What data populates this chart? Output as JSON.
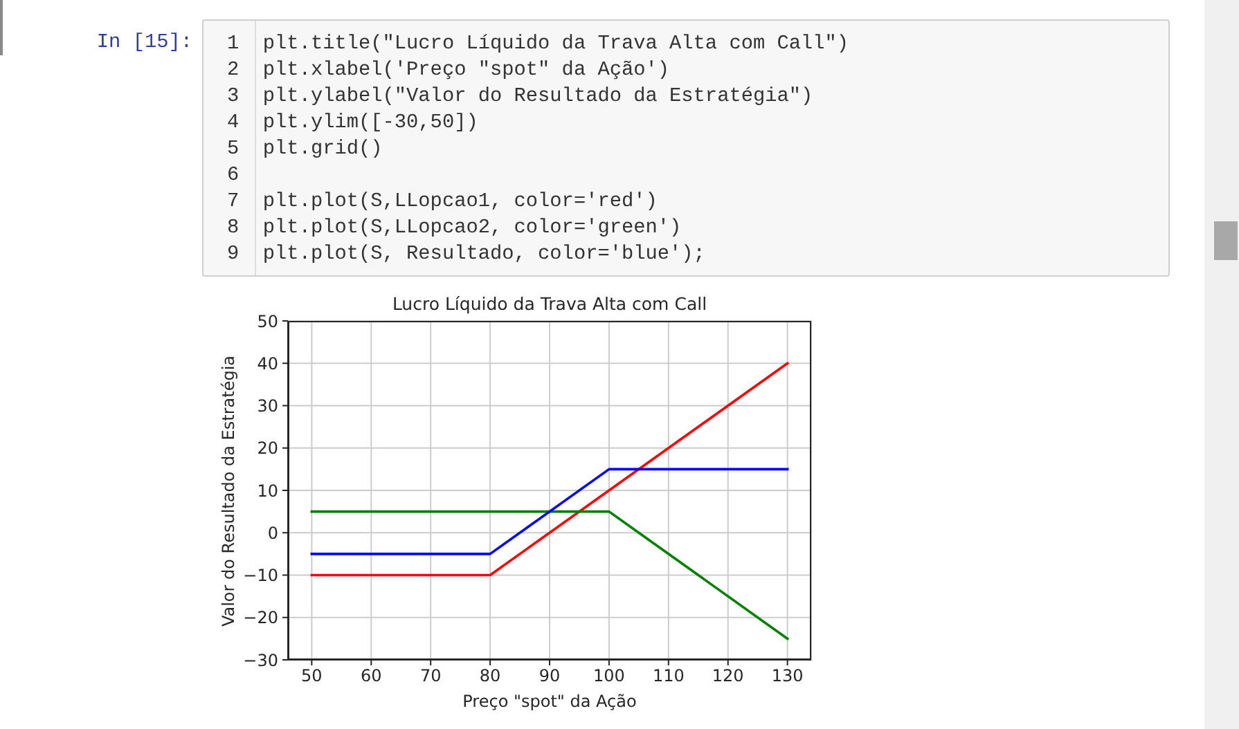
{
  "chart_data": {
    "type": "line",
    "title": "Lucro Líquido da Trava Alta com Call",
    "xlabel": "Preço \"spot\" da Ação",
    "ylabel": "Valor do Resultado da Estratégia",
    "x": [
      50,
      80,
      100,
      130
    ],
    "series": [
      {
        "color": "#ff0000",
        "values": [
          -10,
          -10,
          10,
          40
        ]
      },
      {
        "color": "#008000",
        "values": [
          5,
          5,
          5,
          -25
        ]
      },
      {
        "color": "#0000ff",
        "values": [
          -5,
          -5,
          15,
          15
        ]
      }
    ],
    "xlim": [
      46,
      134
    ],
    "xticks": [
      50,
      60,
      70,
      80,
      90,
      100,
      110,
      120,
      130
    ],
    "ylim": [
      -30,
      50
    ],
    "yticks": [
      {
        "value": -30,
        "label": "−30"
      },
      {
        "value": -20,
        "label": "−20"
      },
      {
        "value": -10,
        "label": "−10"
      },
      0,
      10,
      20,
      30,
      40,
      50
    ],
    "grid": true,
    "marker": "none",
    "line_style": "solid",
    "annotations": [
      "In [15]:",
      "1  plt.title(\"Lucro Líquido da Trava Alta com Call\")",
      "2  plt.xlabel('Preço \"spot\" da Ação')",
      "3  plt.ylabel(\"Valor do Resultado da Estratégia\")",
      "4  plt.ylim([-30,50])",
      "5  plt.grid()",
      "6",
      "7  plt.plot(S,LLopcao1, color='red')",
      "8  plt.plot(S,LLopcao2, color='green')",
      "9  plt.plot(S, Resultado, color='blue');"
    ]
  }
}
